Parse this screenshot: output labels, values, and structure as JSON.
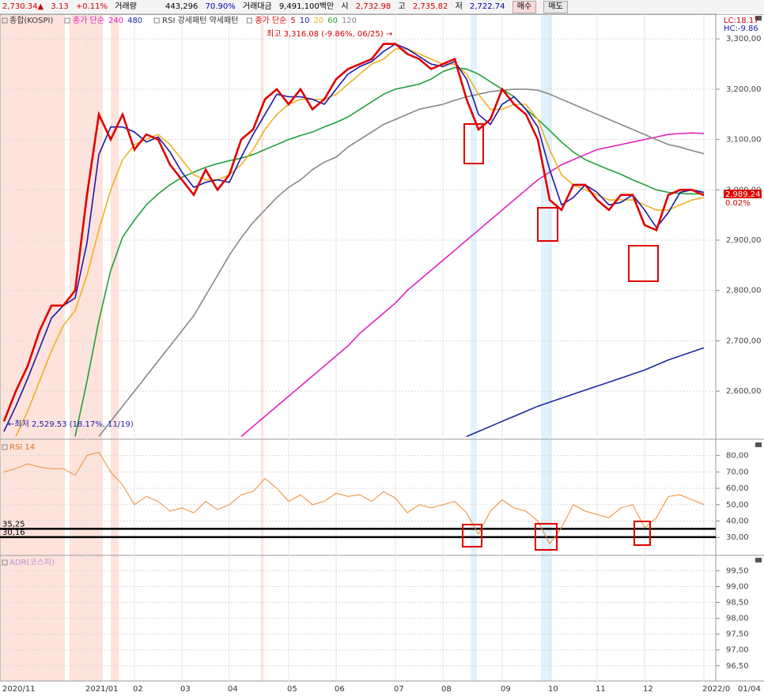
{
  "toolbar": {
    "price": "2,730.34▲",
    "change": "3.13",
    "change_pct": "+0.11%",
    "volume_label": "거래량",
    "volume": "443,296",
    "volume_pct": "70.90%",
    "amount_label": "거래대금",
    "amount": "9,491,100백만",
    "open_label": "시",
    "open": "2,732.98",
    "high_label": "고",
    "high": "2,735.82",
    "low_label": "저",
    "low": "2,722.74",
    "buy": "매수",
    "sell": "매도"
  },
  "chart_data": [
    {
      "type": "line",
      "title": "종합(KOSPI)",
      "legend_label": "종가 단순",
      "legend_extra": "RSI 강세패턴  약세패턴",
      "categories": [
        "2020/11",
        null,
        null,
        null,
        null,
        null,
        null,
        "2021/01",
        null,
        null,
        null,
        "02",
        null,
        null,
        null,
        "03",
        null,
        null,
        null,
        "04",
        null,
        null,
        null,
        null,
        "05",
        null,
        null,
        null,
        "06",
        null,
        null,
        null,
        null,
        "07",
        null,
        null,
        null,
        "08",
        null,
        null,
        null,
        null,
        "09",
        null,
        null,
        null,
        "10",
        null,
        null,
        null,
        "11",
        null,
        null,
        null,
        "12",
        null,
        null,
        null,
        null,
        "2022/0"
      ],
      "x_end_label": "01/04",
      "ylim": [
        2506,
        3349
      ],
      "yticks": [
        {
          "value": 2600,
          "label": "2,600,00"
        },
        {
          "value": 2700,
          "label": "2,700,00"
        },
        {
          "value": 2800,
          "label": "2,800,00"
        },
        {
          "value": 2900,
          "label": "2,900,00"
        },
        {
          "value": 3000,
          "label": "3,000,00"
        },
        {
          "value": 3100,
          "label": "3,100,00"
        },
        {
          "value": 3200,
          "label": "3,200,00"
        },
        {
          "value": 3300,
          "label": "3,300,00"
        }
      ],
      "grid": true,
      "annotations": [
        "최고 3,316.08 (-9.86%, 06/25) →",
        "←최저 2,529.53 (18.17%, 11/19)",
        "LC:18.17",
        "HC:-9.86",
        "2,989.24",
        "0.02%"
      ],
      "series": [
        {
          "name": "5",
          "color": "#e00000",
          "values": [
            2540,
            2600,
            2650,
            2720,
            2770,
            2770,
            2800,
            2990,
            3150,
            3100,
            3150,
            3080,
            3110,
            3100,
            3050,
            3020,
            2990,
            3040,
            3000,
            3030,
            3100,
            3120,
            3180,
            3200,
            3170,
            3200,
            3160,
            3180,
            3220,
            3240,
            3250,
            3260,
            3290,
            3290,
            3270,
            3260,
            3240,
            3250,
            3260,
            3180,
            3120,
            3140,
            3200,
            3170,
            3150,
            3100,
            2980,
            2960,
            3010,
            3010,
            2980,
            2960,
            2990,
            2990,
            2930,
            2920,
            2990,
            3000,
            3000,
            2989.24
          ]
        },
        {
          "name": "10",
          "color": "#1a1aa8",
          "values": [
            2520,
            2570,
            2625,
            2685,
            2745,
            2770,
            2785,
            2895,
            3070,
            3125,
            3125,
            3115,
            3095,
            3105,
            3075,
            3035,
            3005,
            3015,
            3020,
            3015,
            3065,
            3110,
            3150,
            3190,
            3185,
            3185,
            3180,
            3170,
            3200,
            3230,
            3245,
            3255,
            3275,
            3290,
            3280,
            3265,
            3250,
            3245,
            3255,
            3220,
            3150,
            3130,
            3170,
            3185,
            3160,
            3125,
            3040,
            2970,
            2985,
            3010,
            2995,
            2970,
            2975,
            2990,
            2960,
            2925,
            2955,
            2995,
            3000,
            2995
          ]
        },
        {
          "name": "20",
          "color": "#f0b020",
          "values": [
            null,
            2510,
            2560,
            2620,
            2680,
            2730,
            2760,
            2830,
            2920,
            3000,
            3060,
            3090,
            3100,
            3110,
            3090,
            3060,
            3030,
            3020,
            3020,
            3030,
            3050,
            3080,
            3120,
            3150,
            3170,
            3180,
            3180,
            3180,
            3190,
            3210,
            3230,
            3250,
            3260,
            3280,
            3280,
            3270,
            3260,
            3250,
            3250,
            3230,
            3190,
            3160,
            3160,
            3170,
            3170,
            3140,
            3080,
            3030,
            3010,
            3000,
            2990,
            2980,
            2980,
            2980,
            2970,
            2960,
            2960,
            2970,
            2980,
            2985
          ]
        },
        {
          "name": "60",
          "color": "#22a03c",
          "values": [
            null,
            null,
            null,
            null,
            null,
            null,
            2510,
            2620,
            2740,
            2840,
            2906,
            2940,
            2970,
            2992,
            3010,
            3025,
            3035,
            3045,
            3052,
            3058,
            3063,
            3070,
            3080,
            3090,
            3100,
            3108,
            3115,
            3125,
            3134,
            3145,
            3160,
            3175,
            3190,
            3200,
            3205,
            3210,
            3220,
            3235,
            3243,
            3240,
            3230,
            3215,
            3200,
            3185,
            3160,
            3140,
            3118,
            3095,
            3075,
            3060,
            3050,
            3040,
            3031,
            3020,
            3010,
            3000,
            2995,
            2993,
            2992,
            2992
          ]
        },
        {
          "name": "120",
          "color": "#888888",
          "values": [
            null,
            null,
            null,
            null,
            null,
            null,
            null,
            null,
            2510,
            2540,
            2570,
            2600,
            2630,
            2660,
            2690,
            2720,
            2750,
            2790,
            2830,
            2870,
            2905,
            2935,
            2960,
            2985,
            3005,
            3020,
            3040,
            3055,
            3065,
            3085,
            3100,
            3115,
            3130,
            3140,
            3150,
            3160,
            3165,
            3170,
            3178,
            3185,
            3190,
            3195,
            3198,
            3200,
            3200,
            3198,
            3190,
            3180,
            3170,
            3160,
            3150,
            3140,
            3130,
            3120,
            3110,
            3100,
            3090,
            3085,
            3078,
            3072
          ]
        },
        {
          "name": "240",
          "color": "#e020c0",
          "values": [
            null,
            null,
            null,
            null,
            null,
            null,
            null,
            null,
            null,
            null,
            null,
            null,
            null,
            null,
            null,
            null,
            null,
            null,
            null,
            null,
            2510,
            2530,
            2550,
            2570,
            2590,
            2610,
            2630,
            2650,
            2670,
            2690,
            2715,
            2735,
            2755,
            2775,
            2800,
            2820,
            2840,
            2860,
            2880,
            2900,
            2920,
            2940,
            2960,
            2980,
            3000,
            3020,
            3035,
            3050,
            3060,
            3070,
            3080,
            3085,
            3090,
            3095,
            3100,
            3105,
            3110,
            3112,
            3113,
            3112
          ]
        },
        {
          "name": "480",
          "color": "#1a2aa0",
          "values": [
            null,
            null,
            null,
            null,
            null,
            null,
            null,
            null,
            null,
            null,
            null,
            null,
            null,
            null,
            null,
            null,
            null,
            null,
            null,
            null,
            null,
            null,
            null,
            null,
            null,
            null,
            null,
            null,
            null,
            null,
            null,
            null,
            null,
            null,
            null,
            null,
            null,
            null,
            null,
            2510,
            2520,
            2530,
            2540,
            2550,
            2560,
            2570,
            2578,
            2586,
            2594,
            2602,
            2610,
            2618,
            2626,
            2634,
            2642,
            2652,
            2662,
            2670,
            2678,
            2686
          ]
        }
      ]
    },
    {
      "type": "line",
      "title": "RSI 14",
      "color": "#f08a30",
      "ylim": [
        19.5,
        89
      ],
      "yticks": [
        {
          "value": 30,
          "label": "30,00"
        },
        {
          "value": 40,
          "label": "40,00"
        },
        {
          "value": 50,
          "label": "50,00"
        },
        {
          "value": 60,
          "label": "60,00"
        },
        {
          "value": 70,
          "label": "70,00"
        },
        {
          "value": 80,
          "label": "80,00"
        }
      ],
      "grid": true,
      "hlines": [
        {
          "value": 35.25,
          "label": "35,25"
        },
        {
          "value": 30.16,
          "label": "30,16"
        }
      ],
      "values": [
        70,
        72,
        75,
        73,
        72,
        72,
        68,
        80,
        82,
        70,
        62,
        50,
        55,
        52,
        46,
        48,
        45,
        52,
        47,
        50,
        56,
        58,
        66,
        60,
        52,
        56,
        50,
        52,
        57,
        55,
        56,
        52,
        58,
        54,
        45,
        50,
        48,
        50,
        52,
        45,
        32,
        46,
        53,
        48,
        46,
        40,
        26,
        36,
        50,
        46,
        44,
        42,
        48,
        50,
        36,
        42,
        55,
        56,
        53,
        50
      ]
    },
    {
      "type": "line",
      "title": "ADR(코스피)",
      "ylim": [
        96.02,
        99.96
      ],
      "yticks": [
        {
          "value": 96.5,
          "label": "96,50"
        },
        {
          "value": 97,
          "label": "97,00"
        },
        {
          "value": 97.5,
          "label": "97,50"
        },
        {
          "value": 98,
          "label": "98,00"
        },
        {
          "value": 98.5,
          "label": "98,50"
        },
        {
          "value": 99,
          "label": "99,00"
        },
        {
          "value": 99.5,
          "label": "99,50"
        }
      ],
      "grid": true
    }
  ]
}
